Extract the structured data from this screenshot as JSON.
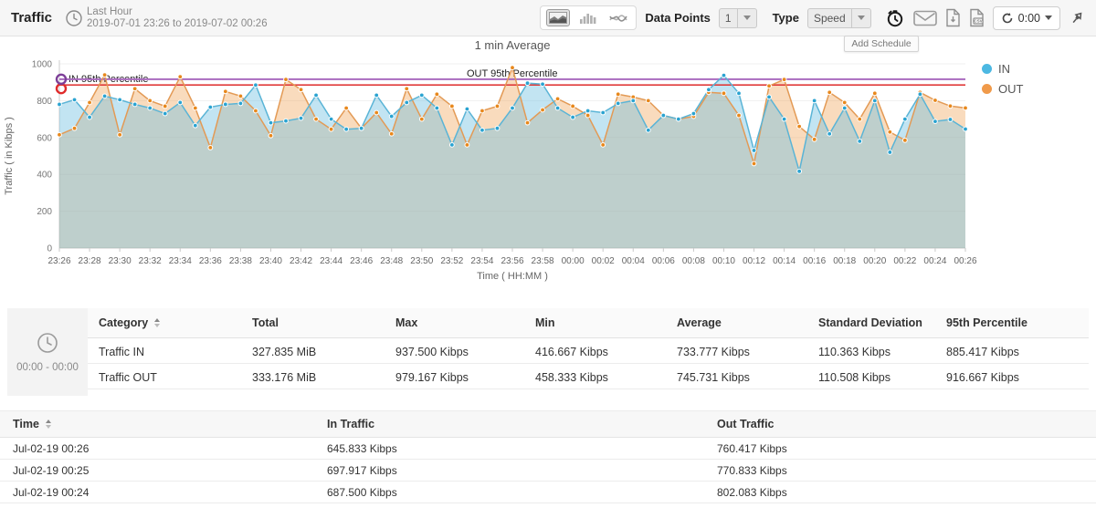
{
  "header": {
    "title": "Traffic",
    "period_label": "Last Hour",
    "period_range": "2019-07-01 23:26 to 2019-07-02 00:26"
  },
  "toolbar": {
    "data_points_label": "Data Points",
    "data_points_value": "1",
    "type_label": "Type",
    "type_value": "Speed",
    "refresh_value": "0:00",
    "tooltip": "Add Schedule"
  },
  "legend": [
    {
      "label": "IN",
      "color": "#4cb8e2"
    },
    {
      "label": "OUT",
      "color": "#f09a4a"
    }
  ],
  "chart_data": {
    "type": "area",
    "title": "1 min Average",
    "xlabel": "Time ( HH:MM )",
    "ylabel": "Traffic ( in Kibps )",
    "ylim": [
      0,
      1000
    ],
    "yticks": [
      0,
      200,
      400,
      600,
      800,
      1000
    ],
    "x": [
      "23:26",
      "23:27",
      "23:28",
      "23:29",
      "23:30",
      "23:31",
      "23:32",
      "23:33",
      "23:34",
      "23:35",
      "23:36",
      "23:37",
      "23:38",
      "23:39",
      "23:40",
      "23:41",
      "23:42",
      "23:43",
      "23:44",
      "23:45",
      "23:46",
      "23:47",
      "23:48",
      "23:49",
      "23:50",
      "23:51",
      "23:52",
      "23:53",
      "23:54",
      "23:55",
      "23:56",
      "23:57",
      "23:58",
      "23:59",
      "00:00",
      "00:01",
      "00:02",
      "00:03",
      "00:04",
      "00:05",
      "00:06",
      "00:07",
      "00:08",
      "00:09",
      "00:10",
      "00:11",
      "00:12",
      "00:13",
      "00:14",
      "00:15",
      "00:16",
      "00:17",
      "00:18",
      "00:19",
      "00:20",
      "00:21",
      "00:22",
      "00:23",
      "00:24",
      "00:25",
      "00:26"
    ],
    "series": [
      {
        "name": "OUT",
        "color": "#e39a55",
        "dot": "#e8881c",
        "fill": "rgba(240,166,90,0.40)",
        "values": [
          615,
          650,
          790,
          940,
          615,
          865,
          800,
          770,
          930,
          760,
          545,
          850,
          825,
          745,
          610,
          915,
          860,
          700,
          645,
          760,
          650,
          735,
          620,
          865,
          700,
          835,
          770,
          560,
          745,
          770,
          979.167,
          680,
          750,
          810,
          770,
          720,
          560,
          835,
          820,
          800,
          720,
          700,
          715,
          845,
          840,
          720,
          458.333,
          880,
          915,
          660,
          590,
          845,
          790,
          700,
          840,
          630,
          585,
          845,
          802.083,
          770.833,
          760.417
        ]
      },
      {
        "name": "IN",
        "color": "#5ab4d6",
        "dot": "#2aa3d1",
        "fill": "rgba(110,190,225,0.42)",
        "values": [
          780,
          805,
          710,
          825,
          805,
          780,
          760,
          730,
          790,
          665,
          765,
          780,
          785,
          885,
          680,
          690,
          705,
          830,
          700,
          645,
          650,
          830,
          715,
          790,
          830,
          760,
          560,
          755,
          640,
          650,
          760,
          895,
          890,
          760,
          710,
          745,
          735,
          785,
          800,
          640,
          720,
          700,
          730,
          860,
          937.5,
          840,
          530,
          820,
          700,
          416.667,
          800,
          620,
          760,
          580,
          800,
          520,
          700,
          835,
          687.5,
          697.917,
          645.833
        ]
      }
    ],
    "annotations": [
      {
        "label": "IN 95th Percentile",
        "value": 885.417,
        "color": "#e03b3b",
        "circle": "#e02b2b"
      },
      {
        "label": "OUT 95th Percentile",
        "value": 916.667,
        "color": "#a96bbf",
        "circle": "#7d3f98"
      }
    ],
    "legend_position": "right",
    "grid": "horizontal"
  },
  "stats_table": {
    "time_range": "00:00 - 00:00",
    "columns": [
      "Category",
      "Total",
      "Max",
      "Min",
      "Average",
      "Standard Deviation",
      "95th Percentile"
    ],
    "rows": [
      [
        "Traffic IN",
        "327.835 MiB",
        "937.500 Kibps",
        "416.667 Kibps",
        "733.777 Kibps",
        "110.363 Kibps",
        "885.417 Kibps"
      ],
      [
        "Traffic OUT",
        "333.176 MiB",
        "979.167 Kibps",
        "458.333 Kibps",
        "745.731 Kibps",
        "110.508 Kibps",
        "916.667 Kibps"
      ]
    ]
  },
  "traffic_table": {
    "columns": [
      "Time",
      "In Traffic",
      "Out Traffic"
    ],
    "rows": [
      [
        "Jul-02-19 00:26",
        "645.833 Kibps",
        "760.417 Kibps"
      ],
      [
        "Jul-02-19 00:25",
        "697.917 Kibps",
        "770.833 Kibps"
      ],
      [
        "Jul-02-19 00:24",
        "687.500 Kibps",
        "802.083 Kibps"
      ]
    ]
  }
}
